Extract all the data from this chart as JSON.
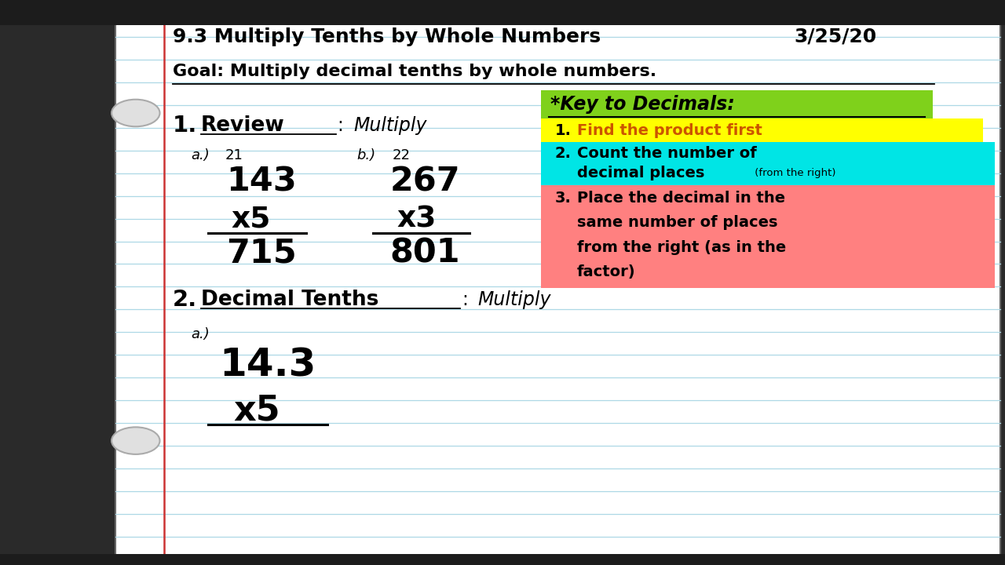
{
  "bg_color": "#ffffff",
  "line_color": "#add8e6",
  "margin_line_color": "#cc3333",
  "title": "9.3 Multiply Tenths by Whole Numbers",
  "date": "3/25/20",
  "goal": "Goal: Multiply decimal tenths by whole numbers.",
  "section1_num": "1.",
  "section1_bold": "Review",
  "section1_colon": ": ",
  "section1_italic": "Multiply",
  "key_title": "*Key to Decimals:",
  "key_bg": "#7fd11b",
  "step1_text": "Find the product first",
  "step1_bg": "#ffff00",
  "step1_num": "1.",
  "step2_line1": "Count the number of",
  "step2_line2": "decimal places",
  "step2_suffix": " (from the right)",
  "step2_bg": "#00e5e5",
  "step2_num": "2.",
  "step3_line1": "Place the decimal in the",
  "step3_line2": "same number of places",
  "step3_line3": "from the right (as in the",
  "step3_line4": "factor)",
  "step3_bg": "#ff8080",
  "step3_num": "3.",
  "section2_num": "2.",
  "section2_bold": "Decimal Tenths",
  "section2_colon": ": ",
  "section2_italic": "Multiply",
  "prob1a_label": "a.)",
  "prob1a_small": "21",
  "prob1a_num": "143",
  "prob1a_mult": "x5",
  "prob1a_result": "715",
  "prob1b_label": "b.)",
  "prob1b_small": "22",
  "prob1b_num": "267",
  "prob1b_mult": "x3",
  "prob1b_result": "801",
  "prob2a_label": "a.)",
  "prob2a_num": "14.3",
  "prob2a_mult": "x5",
  "outer_bg": "#2a2a2a",
  "notebook_bg": "#ffffff",
  "black": "#000000"
}
